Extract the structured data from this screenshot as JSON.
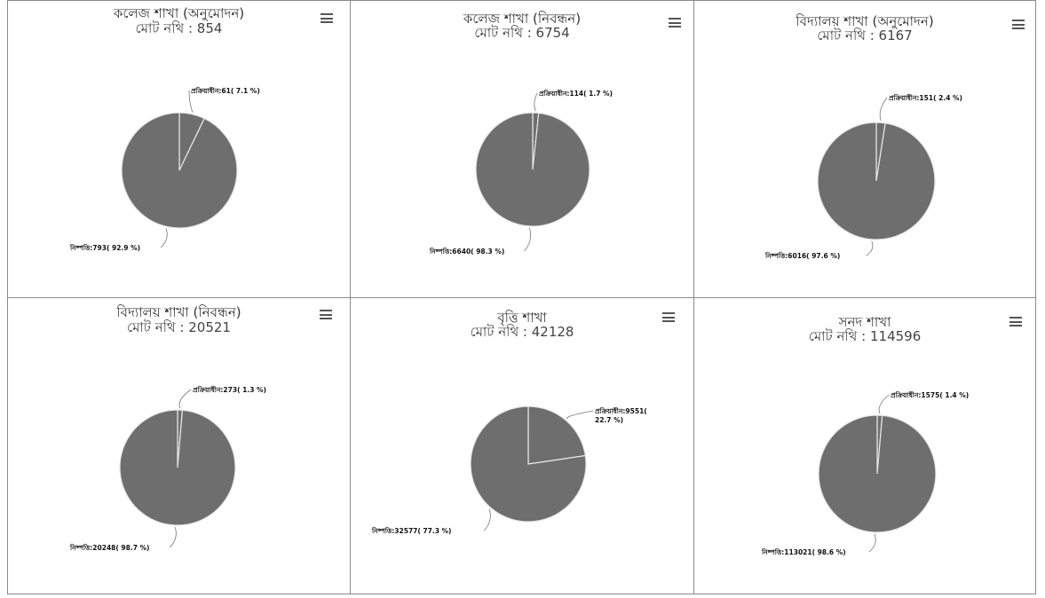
{
  "colors": {
    "slice": "#6e6e6e",
    "slice_edge": "#e8e8e8",
    "border": "#8a8a8a",
    "connector": "#777777"
  },
  "menu_icon": "hamburger-menu-icon",
  "chart_data": [
    {
      "type": "pie",
      "title": "কলেজ শাখা (অনুমোদন)",
      "subtitle": "মোট নথি : 854",
      "slices": [
        {
          "label": "প্রক্রিয়াধীন:61( 7.1 %)",
          "value": 61,
          "percent": 7.1
        },
        {
          "label": "নিষ্পত্তি:793( 92.9 %)",
          "value": 793,
          "percent": 92.9
        }
      ]
    },
    {
      "type": "pie",
      "title": "কলেজ শাখা (নিবন্ধন)",
      "subtitle": "মোট নথি : 6754",
      "slices": [
        {
          "label": "প্রক্রিয়াধীন:114( 1.7 %)",
          "value": 114,
          "percent": 1.7
        },
        {
          "label": "নিষ্পত্তি:6640( 98.3 %)",
          "value": 6640,
          "percent": 98.3
        }
      ]
    },
    {
      "type": "pie",
      "title": "বিদ্যালয় শাখা (অনুমোদন)",
      "subtitle": "মোট নথি : 6167",
      "slices": [
        {
          "label": "প্রক্রিয়াধীন:151( 2.4 %)",
          "value": 151,
          "percent": 2.4
        },
        {
          "label": "নিষ্পত্তি:6016( 97.6 %)",
          "value": 6016,
          "percent": 97.6
        }
      ]
    },
    {
      "type": "pie",
      "title": "বিদ্যালয় শাখা (নিবন্ধন)",
      "subtitle": "মোট নথি : 20521",
      "slices": [
        {
          "label": "প্রক্রিয়াধীন:273( 1.3 %)",
          "value": 273,
          "percent": 1.3
        },
        {
          "label": "নিষ্পত্তি:20248( 98.7 %)",
          "value": 20248,
          "percent": 98.7
        }
      ]
    },
    {
      "type": "pie",
      "title": "বৃত্তি শাখা",
      "subtitle": "মোট নথি : 42128",
      "slices": [
        {
          "label": "প্রক্রিয়াধীন:9551( 22.7 %)",
          "value": 9551,
          "percent": 22.7
        },
        {
          "label": "নিষ্পত্তি:32577( 77.3 %)",
          "value": 32577,
          "percent": 77.3
        }
      ]
    },
    {
      "type": "pie",
      "title": "সনদ শাখা",
      "subtitle": "মোট নথি : 114596",
      "slices": [
        {
          "label": "প্রক্রিয়াধীন:1575( 1.4 %)",
          "value": 1575,
          "percent": 1.4
        },
        {
          "label": "নিষ্পত্তি:113021( 98.6 %)",
          "value": 113021,
          "percent": 98.6
        }
      ]
    }
  ]
}
